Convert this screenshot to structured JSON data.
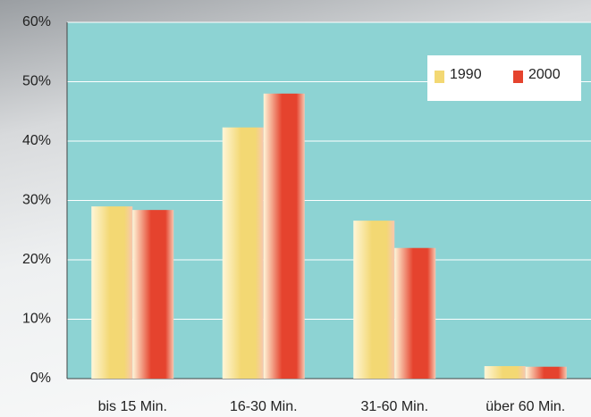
{
  "chart_data": {
    "type": "bar",
    "categories": [
      "bis 15 Min.",
      "16-30 Min.",
      "31-60 Min.",
      "über 60 Min."
    ],
    "series": [
      {
        "name": "1990",
        "color": "#f3d873",
        "values": [
          29.0,
          42.3,
          26.6,
          2.1
        ]
      },
      {
        "name": "2000",
        "color": "#e5432e",
        "values": [
          28.4,
          48.0,
          22.0,
          2.0
        ]
      }
    ],
    "ylim": [
      0,
      60
    ],
    "yticks": [
      {
        "value": 0,
        "label": "0%"
      },
      {
        "value": 10,
        "label": "10%"
      },
      {
        "value": 20,
        "label": "20%"
      },
      {
        "value": 30,
        "label": "30%"
      },
      {
        "value": 40,
        "label": "40%"
      },
      {
        "value": 50,
        "label": "50%"
      },
      {
        "value": 60,
        "label": "60%"
      }
    ],
    "grid": true,
    "legend": "top-right"
  }
}
